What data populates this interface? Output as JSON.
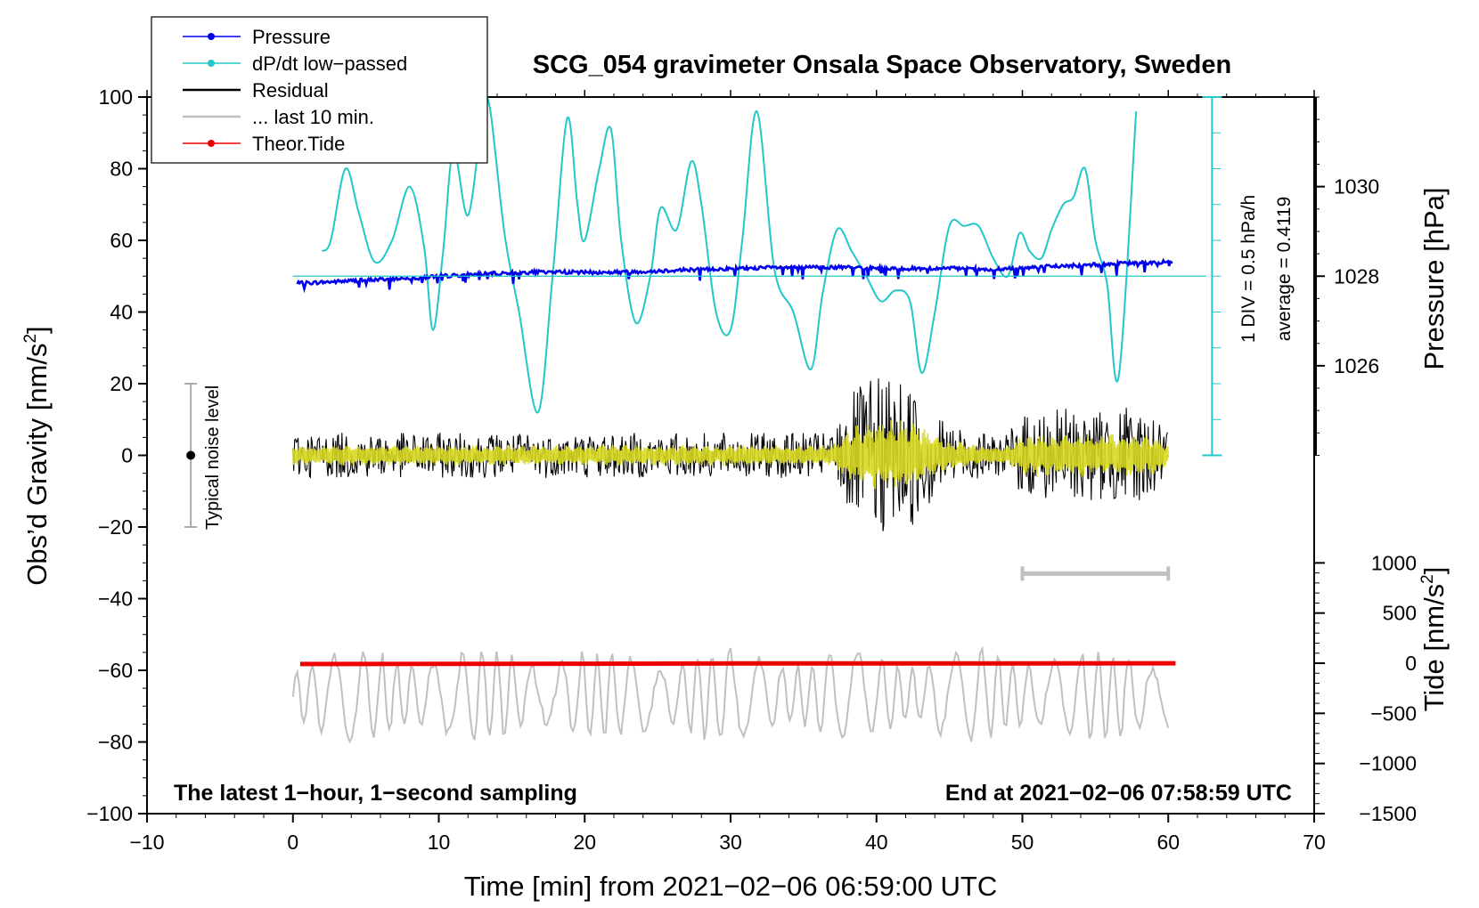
{
  "chart_data": {
    "type": "line",
    "title": "SCG_054 gravimeter Onsala Space Observatory, Sweden",
    "xlabel": "Time [min] from 2021−02−06 06:59:00 UTC",
    "ylabel_left_main": "Obs’d Gravity [nm/s",
    "ylabel_left_sup": "2",
    "ylabel_left_end": "]",
    "ylabel_right_pressure": "Pressure [hPa]",
    "ylabel_right_tide_main": "Tide [nm/s",
    "ylabel_right_tide_sup": "2",
    "ylabel_right_tide_end": "]",
    "xlim": [
      -10,
      70
    ],
    "ylim": [
      -100,
      100
    ],
    "x_ticks": [
      "−10",
      "0",
      "10",
      "20",
      "30",
      "40",
      "50",
      "60",
      "70"
    ],
    "y_ticks": [
      "−100",
      "−80",
      "−60",
      "−40",
      "−20",
      "0",
      "20",
      "40",
      "60",
      "80",
      "100"
    ],
    "pressure_axis": {
      "range_hPa": [
        1024,
        1032
      ],
      "ticks": [
        "1026",
        "1028",
        "1030"
      ],
      "tick_values": [
        1026,
        1028,
        1030
      ]
    },
    "tide_axis": {
      "range": [
        -1500,
        1500
      ],
      "ticks": [
        "−1500",
        "−1000",
        "−500",
        "0",
        "500",
        "1000"
      ],
      "tick_values": [
        -1500,
        -1000,
        -500,
        0,
        500,
        1000
      ]
    },
    "scale_bar": {
      "label": "1 DIV = 0.5 hPa/h",
      "average": "average = 0.4119",
      "x": 63,
      "y_top": 100,
      "y_bottom": 0
    },
    "noise_bar": {
      "label": "Typical noise level",
      "x": -7,
      "center": 0,
      "half_range": 20
    },
    "last10_bar": {
      "x_start": 50,
      "x_end": 60,
      "y": -33
    },
    "annotation_left": "The latest 1−hour, 1−second sampling",
    "annotation_right": "End at 2021−02−06 07:58:59 UTC",
    "legend": {
      "position": "top-left",
      "entries": [
        {
          "label": "Pressure",
          "color": "#0000ee",
          "marker": true
        },
        {
          "label": "dP/dt low−passed",
          "color": "#22c8c8",
          "marker": true
        },
        {
          "label": "Residual",
          "color": "#000000",
          "marker": false
        },
        {
          "label": "... last 10 min.",
          "color": "#c0c0c0",
          "marker": false
        },
        {
          "label": "Theor.Tide",
          "color": "#ee0000",
          "marker": true
        }
      ]
    },
    "series": [
      {
        "name": "Pressure",
        "color": "#0000ee",
        "axis": "left",
        "x": [
          0.3,
          2,
          5,
          8,
          10,
          12,
          15,
          18,
          21,
          24,
          27,
          30,
          33,
          36,
          39,
          42,
          45,
          48,
          51,
          54,
          57,
          60.3
        ],
        "y": [
          48,
          48.3,
          48.9,
          49.5,
          50,
          50.4,
          51,
          51.2,
          51,
          51.3,
          51.8,
          52.1,
          52.4,
          52.5,
          52.4,
          52.1,
          52.2,
          51.8,
          52.6,
          53,
          53.6,
          54
        ]
      },
      {
        "name": "dP/dt low−passed",
        "color": "#22c8c8",
        "axis": "left",
        "x": [
          2,
          2.6,
          3.6,
          4.5,
          5.6,
          6.8,
          8,
          9,
          9.6,
          10.3,
          11,
          12,
          13,
          13.5,
          14.5,
          15.5,
          16.8,
          17.8,
          18.8,
          19.5,
          20,
          21,
          21.8,
          22.5,
          23.5,
          24.5,
          25.2,
          26.3,
          27.3,
          28,
          29,
          30,
          30.8,
          31.8,
          33,
          34.3,
          35.5,
          36.3,
          37.3,
          38.3,
          39.3,
          40.3,
          41.3,
          42.3,
          43.1,
          44,
          45,
          46,
          47,
          48,
          49,
          49.8,
          50.5,
          51.3,
          52,
          52.8,
          53.5,
          54.3,
          55,
          55.8,
          56.6,
          57.8
        ],
        "y": [
          57,
          60,
          80,
          68,
          54,
          60,
          75,
          58,
          35,
          57,
          85,
          67,
          95,
          97,
          62,
          40,
          12,
          50,
          94,
          70,
          60,
          80,
          91,
          60,
          37,
          50,
          69,
          63,
          82,
          70,
          40,
          35,
          60,
          96,
          52,
          40,
          24,
          45,
          63,
          57,
          50,
          43,
          46,
          43,
          23,
          40,
          64,
          64,
          64,
          55,
          50,
          62,
          57,
          55,
          63,
          70,
          72,
          80,
          60,
          48,
          22,
          96
        ]
      },
      {
        "name": "Residual",
        "color": "#000000",
        "axis": "left",
        "x": [
          0,
          37,
          38,
          39,
          40,
          41,
          42,
          43,
          44,
          45,
          46,
          47,
          48,
          49,
          50,
          51,
          52,
          53,
          54,
          55,
          56,
          57,
          58,
          59,
          60
        ],
        "y_envelope": [
          7,
          7,
          18,
          22,
          24,
          26,
          24,
          20,
          14,
          10,
          9,
          7,
          6,
          7,
          13,
          15,
          14,
          15,
          15,
          14,
          15,
          15,
          14,
          14,
          7
        ]
      },
      {
        "name": "... last 10 min.",
        "color": "#c0c0c0",
        "axis": "left",
        "x": [
          0,
          60
        ],
        "y_center": -67,
        "y_envelope": 12
      },
      {
        "name": "Theor.Tide",
        "color": "#ee0000",
        "axis": "tide",
        "x": [
          0.5,
          10,
          20,
          30,
          40,
          50,
          60.5
        ],
        "y": [
          -8,
          -6,
          -5,
          -3,
          -2,
          -2,
          -1
        ]
      }
    ]
  }
}
